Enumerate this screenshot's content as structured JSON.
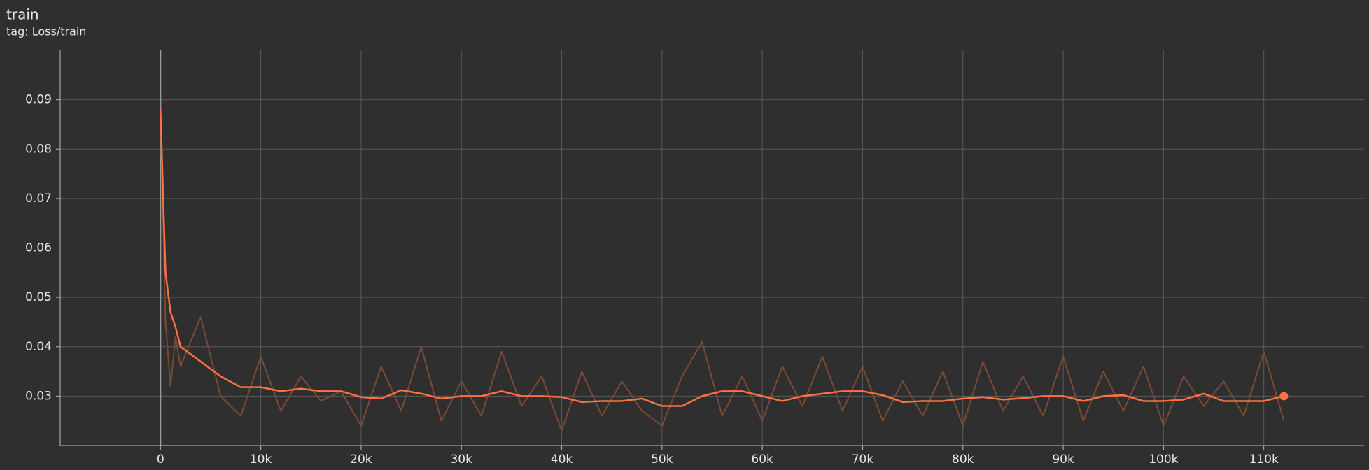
{
  "chart_data": {
    "type": "line",
    "title": "train",
    "subtitle": "tag: Loss/train",
    "x": [
      0,
      500,
      1000,
      1500,
      2000,
      4000,
      6000,
      8000,
      10000,
      12000,
      14000,
      16000,
      18000,
      20000,
      22000,
      24000,
      26000,
      28000,
      30000,
      32000,
      34000,
      36000,
      38000,
      40000,
      42000,
      44000,
      46000,
      48000,
      50000,
      52000,
      54000,
      56000,
      58000,
      60000,
      62000,
      64000,
      66000,
      68000,
      70000,
      72000,
      74000,
      76000,
      78000,
      80000,
      82000,
      84000,
      86000,
      88000,
      90000,
      92000,
      94000,
      96000,
      98000,
      100000,
      102000,
      104000,
      106000,
      108000,
      110000,
      112000
    ],
    "series": [
      {
        "color": "#7a4a36",
        "values": [
          0.088,
          0.045,
          0.032,
          0.042,
          0.036,
          0.046,
          0.03,
          0.026,
          0.038,
          0.027,
          0.034,
          0.029,
          0.031,
          0.024,
          0.036,
          0.027,
          0.04,
          0.025,
          0.033,
          0.026,
          0.039,
          0.028,
          0.034,
          0.023,
          0.035,
          0.026,
          0.033,
          0.027,
          0.024,
          0.034,
          0.041,
          0.026,
          0.034,
          0.025,
          0.036,
          0.028,
          0.038,
          0.027,
          0.036,
          0.025,
          0.033,
          0.026,
          0.035,
          0.024,
          0.037,
          0.027,
          0.034,
          0.026,
          0.038,
          0.025,
          0.035,
          0.027,
          0.036,
          0.024,
          0.034,
          0.028,
          0.033,
          0.026,
          0.039,
          0.025
        ]
      },
      {
        "color": "#ff7043",
        "values": [
          0.088,
          0.055,
          0.047,
          0.044,
          0.04,
          0.037,
          0.034,
          0.0318,
          0.0318,
          0.031,
          0.0315,
          0.031,
          0.031,
          0.0298,
          0.0295,
          0.0312,
          0.0305,
          0.0295,
          0.03,
          0.03,
          0.031,
          0.03,
          0.03,
          0.0298,
          0.0288,
          0.029,
          0.029,
          0.0295,
          0.028,
          0.028,
          0.03,
          0.031,
          0.031,
          0.03,
          0.029,
          0.03,
          0.0305,
          0.031,
          0.031,
          0.0302,
          0.0288,
          0.029,
          0.029,
          0.0295,
          0.0298,
          0.0293,
          0.0296,
          0.03,
          0.03,
          0.029,
          0.03,
          0.0302,
          0.029,
          0.029,
          0.0293,
          0.0305,
          0.029,
          0.029,
          0.029,
          0.03
        ]
      }
    ],
    "xlim": [
      -10000,
      120000
    ],
    "xticks": [
      {
        "value": 0,
        "label": "0"
      },
      {
        "value": 10000,
        "label": "10k"
      },
      {
        "value": 20000,
        "label": "20k"
      },
      {
        "value": 30000,
        "label": "30k"
      },
      {
        "value": 40000,
        "label": "40k"
      },
      {
        "value": 50000,
        "label": "50k"
      },
      {
        "value": 60000,
        "label": "60k"
      },
      {
        "value": 70000,
        "label": "70k"
      },
      {
        "value": 80000,
        "label": "80k"
      },
      {
        "value": 90000,
        "label": "90k"
      },
      {
        "value": 100000,
        "label": "100k"
      },
      {
        "value": 110000,
        "label": "110k"
      }
    ],
    "ylim": [
      0.02,
      0.1
    ],
    "yticks": [
      0.03,
      0.04,
      0.05,
      0.06,
      0.07,
      0.08,
      0.09
    ],
    "grid": true
  }
}
